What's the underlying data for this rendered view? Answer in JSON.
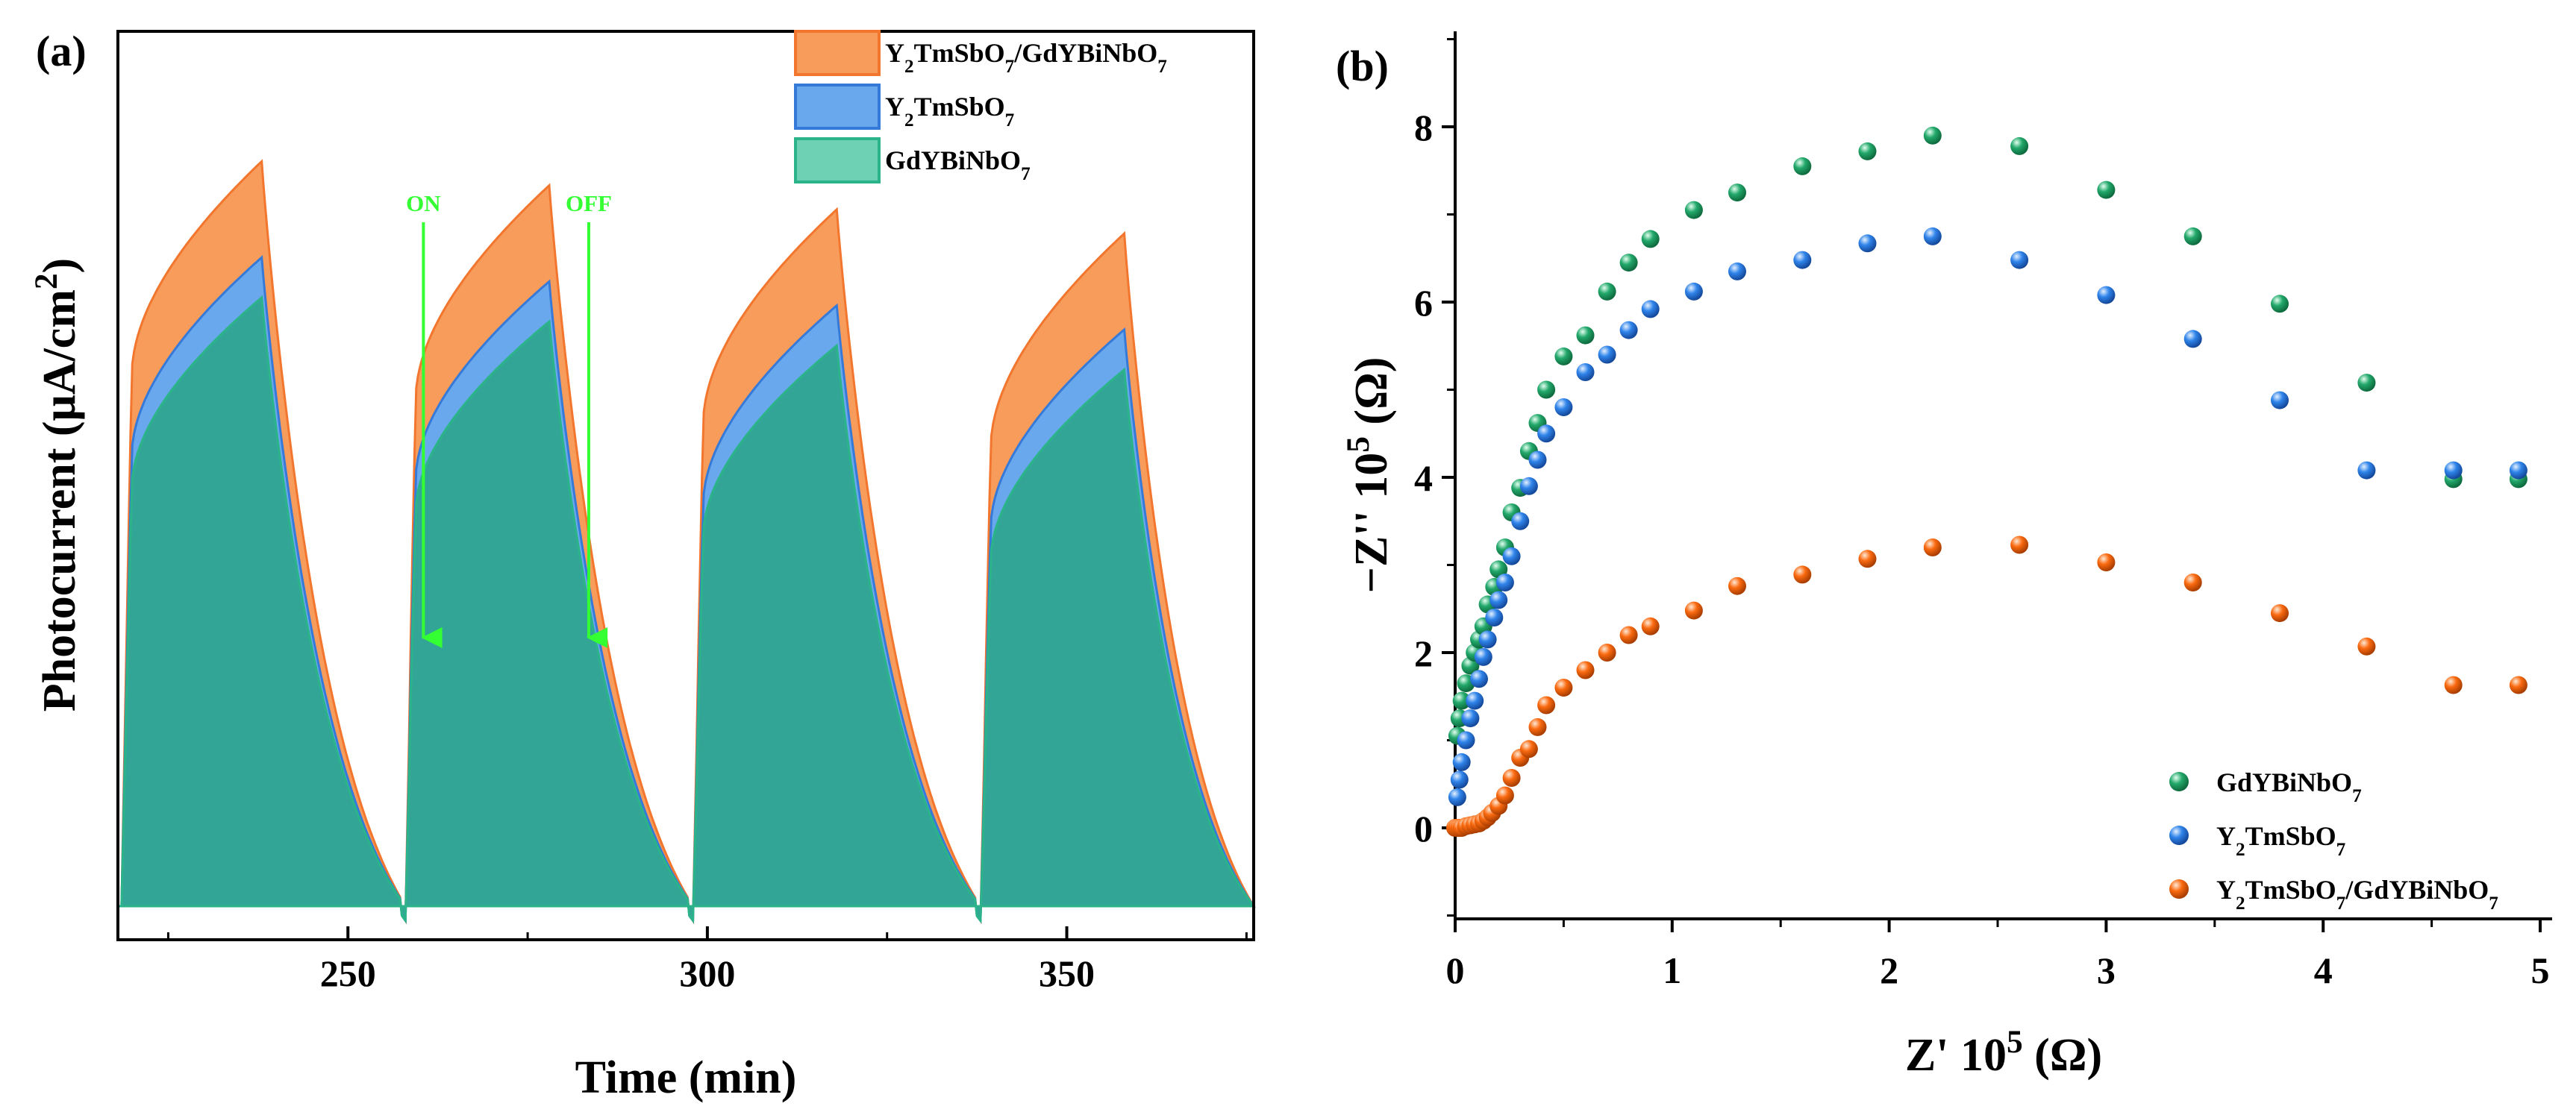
{
  "chart_data": [
    {
      "type": "area",
      "panel_label": "(a)",
      "title": "",
      "xlabel": "Time (min)",
      "ylabel": {
        "base": "Photocurrent (μA/cm",
        "sup": "2",
        "tail": ")"
      },
      "xlim": [
        218,
        376
      ],
      "ylim": [
        0,
        1
      ],
      "xticks": [
        "250",
        "300",
        "350"
      ],
      "x_tick_values": [
        250,
        300,
        350
      ],
      "y_ticks_shown": false,
      "series": [
        {
          "name": "Y2TmSbO7/GdYBiNbO7",
          "legend": {
            "parts": [
              [
                "Y",
                ""
              ],
              [
                "2",
                "sub"
              ],
              [
                "TmSbO",
                ""
              ],
              [
                "7",
                "sub"
              ],
              [
                "/GdYBiNbO",
                ""
              ],
              [
                "7",
                "sub"
              ]
            ]
          },
          "fill": "#F79C5B",
          "stroke": "#F2762E",
          "cycles": [
            {
              "on": 218.5,
              "peak": 238,
              "end": 258,
              "base": 0.0,
              "rise": 0.66,
              "top": 0.93
            },
            {
              "on": 258,
              "peak": 278,
              "end": 298,
              "base": 0.0,
              "rise": 0.63,
              "top": 0.9
            },
            {
              "on": 298,
              "peak": 318,
              "end": 338,
              "base": 0.0,
              "rise": 0.6,
              "top": 0.87
            },
            {
              "on": 338,
              "peak": 358,
              "end": 376,
              "base": 0.0,
              "rise": 0.57,
              "top": 0.84
            }
          ]
        },
        {
          "name": "Y2TmSbO7",
          "legend": {
            "parts": [
              [
                "Y",
                ""
              ],
              [
                "2",
                "sub"
              ],
              [
                "TmSbO",
                ""
              ],
              [
                "7",
                "sub"
              ]
            ]
          },
          "fill": "#6AA8EE",
          "stroke": "#3579D9",
          "cycles": [
            {
              "on": 218.5,
              "peak": 238,
              "end": 258,
              "base": 0.0,
              "rise": 0.56,
              "top": 0.81
            },
            {
              "on": 258,
              "peak": 278,
              "end": 298,
              "base": 0.0,
              "rise": 0.53,
              "top": 0.78
            },
            {
              "on": 298,
              "peak": 318,
              "end": 338,
              "base": 0.0,
              "rise": 0.5,
              "top": 0.75
            },
            {
              "on": 338,
              "peak": 358,
              "end": 376,
              "base": 0.0,
              "rise": 0.47,
              "top": 0.72
            }
          ]
        },
        {
          "name": "GdYBiNbO7",
          "legend": {
            "parts": [
              [
                "GdYBiNbO",
                ""
              ],
              [
                "7",
                "sub"
              ]
            ]
          },
          "fill": "#33A596",
          "stroke": "#2BB48A",
          "cycles": [
            {
              "on": 218.5,
              "peak": 238,
              "end": 258,
              "base": 0.0,
              "rise": 0.52,
              "top": 0.76
            },
            {
              "on": 258,
              "peak": 278,
              "end": 298,
              "base": 0.0,
              "rise": 0.49,
              "top": 0.73
            },
            {
              "on": 298,
              "peak": 318,
              "end": 338,
              "base": 0.0,
              "rise": 0.46,
              "top": 0.7
            },
            {
              "on": 338,
              "peak": 358,
              "end": 376,
              "base": 0.0,
              "rise": 0.43,
              "top": 0.67
            }
          ]
        }
      ],
      "legend_swatch_fills": [
        "#F79C5B",
        "#6AA8EE",
        "#6FD1B3"
      ],
      "annotations": [
        {
          "text": "ON",
          "x": 260.5,
          "y_from": 0.94,
          "y_to": 0.38,
          "color": "#33FF33"
        },
        {
          "text": "OFF",
          "x": 283.5,
          "y_from": 0.94,
          "y_to": 0.38,
          "color": "#33FF33"
        }
      ]
    },
    {
      "type": "scatter",
      "panel_label": "(b)",
      "title": "",
      "xlabel": {
        "base": "Z' 10",
        "sup": "5",
        "tail": " (Ω)"
      },
      "ylabel": {
        "base": "−Z'' 10",
        "sup": "5",
        "tail": " (Ω)"
      },
      "xlim": [
        0,
        5
      ],
      "ylim": [
        -1,
        9
      ],
      "xticks": [
        0,
        1,
        2,
        3,
        4,
        5
      ],
      "yticks": [
        0,
        2,
        4,
        6,
        8
      ],
      "legend_position": "bottom-right",
      "series": [
        {
          "name": "GdYBiNbO7",
          "legend": {
            "parts": [
              [
                "GdYBiNbO",
                ""
              ],
              [
                "7",
                "sub"
              ]
            ]
          },
          "color": "#22A86A",
          "x": [
            0.01,
            0.02,
            0.03,
            0.05,
            0.07,
            0.09,
            0.11,
            0.13,
            0.15,
            0.18,
            0.2,
            0.23,
            0.26,
            0.3,
            0.34,
            0.38,
            0.42,
            0.5,
            0.6,
            0.7,
            0.8,
            0.9,
            1.1,
            1.3,
            1.6,
            1.9,
            2.2,
            2.6,
            3.0,
            3.4,
            3.8,
            4.2,
            4.6,
            4.9
          ],
          "y": [
            1.05,
            1.25,
            1.45,
            1.65,
            1.85,
            2.0,
            2.15,
            2.3,
            2.55,
            2.75,
            2.95,
            3.2,
            3.6,
            3.88,
            4.3,
            4.62,
            5.0,
            5.38,
            5.62,
            6.12,
            6.45,
            6.72,
            7.05,
            7.25,
            7.55,
            7.72,
            7.9,
            7.78,
            7.28,
            6.75,
            5.98,
            5.08,
            3.98,
            3.98
          ]
        },
        {
          "name": "Y2TmSbO7",
          "legend": {
            "parts": [
              [
                "Y",
                ""
              ],
              [
                "2",
                "sub"
              ],
              [
                "TmSbO",
                ""
              ],
              [
                "7",
                "sub"
              ]
            ]
          },
          "color": "#2F84EA",
          "x": [
            0.01,
            0.02,
            0.03,
            0.05,
            0.07,
            0.09,
            0.11,
            0.13,
            0.15,
            0.18,
            0.2,
            0.23,
            0.26,
            0.3,
            0.34,
            0.38,
            0.42,
            0.5,
            0.6,
            0.7,
            0.8,
            0.9,
            1.1,
            1.3,
            1.6,
            1.9,
            2.2,
            2.6,
            3.0,
            3.4,
            3.8,
            4.2,
            4.6,
            4.9
          ],
          "y": [
            0.35,
            0.55,
            0.75,
            1.0,
            1.25,
            1.45,
            1.7,
            1.95,
            2.15,
            2.4,
            2.6,
            2.8,
            3.1,
            3.5,
            3.9,
            4.2,
            4.5,
            4.8,
            5.2,
            5.4,
            5.68,
            5.92,
            6.12,
            6.35,
            6.48,
            6.67,
            6.75,
            6.48,
            6.08,
            5.58,
            4.88,
            4.08,
            4.08,
            4.08
          ]
        },
        {
          "name": "Y2TmSbO7/GdYBiNbO7",
          "legend": {
            "parts": [
              [
                "Y",
                ""
              ],
              [
                "2",
                "sub"
              ],
              [
                "TmSbO",
                ""
              ],
              [
                "7",
                "sub"
              ],
              [
                "/GdYBiNbO",
                ""
              ],
              [
                "7",
                "sub"
              ]
            ]
          },
          "color": "#FA6A10",
          "x": [
            0.0,
            0.01,
            0.02,
            0.03,
            0.05,
            0.07,
            0.09,
            0.11,
            0.13,
            0.15,
            0.17,
            0.2,
            0.23,
            0.26,
            0.3,
            0.34,
            0.38,
            0.42,
            0.5,
            0.6,
            0.7,
            0.8,
            0.9,
            1.1,
            1.3,
            1.6,
            1.9,
            2.2,
            2.6,
            3.0,
            3.4,
            3.8,
            4.2,
            4.6,
            4.9
          ],
          "y": [
            0.0,
            0.0,
            0.0,
            0.0,
            0.02,
            0.03,
            0.04,
            0.05,
            0.08,
            0.12,
            0.17,
            0.25,
            0.37,
            0.57,
            0.8,
            0.9,
            1.15,
            1.4,
            1.6,
            1.8,
            2.0,
            2.2,
            2.3,
            2.48,
            2.76,
            2.89,
            3.07,
            3.2,
            3.23,
            3.03,
            2.8,
            2.45,
            2.07,
            1.63,
            1.63
          ]
        }
      ]
    }
  ]
}
